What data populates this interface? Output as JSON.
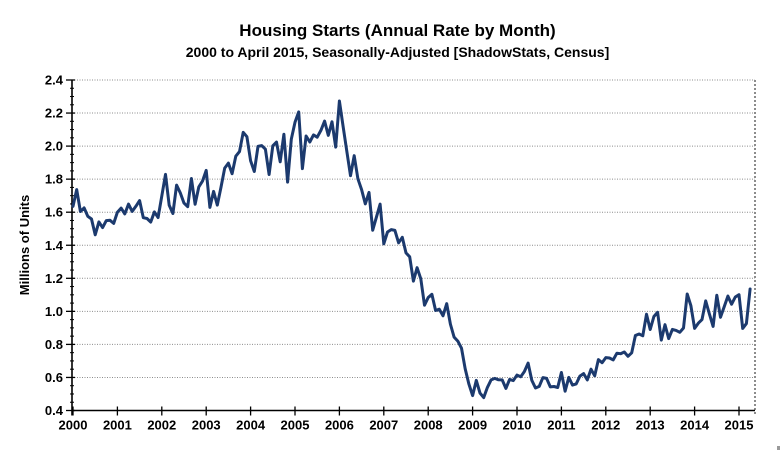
{
  "chart_data": {
    "type": "line",
    "title": "Housing Starts (Annual Rate by Month)",
    "subtitle": "2000 to April 2015, Seasonally-Adjusted [ShadowStats, Census]",
    "ylabel": "Millions  of  Units",
    "xlabel": "",
    "ylim": [
      0.4,
      2.4
    ],
    "ytick_step": 0.2,
    "yticks": [
      "0.4",
      "0.6",
      "0.8",
      "1.0",
      "1.2",
      "1.4",
      "1.6",
      "1.8",
      "2.0",
      "2.2",
      "2.4"
    ],
    "xticks": [
      "2000",
      "2001",
      "2002",
      "2003",
      "2004",
      "2005",
      "2006",
      "2007",
      "2008",
      "2009",
      "2010",
      "2011",
      "2012",
      "2013",
      "2014",
      "2015"
    ],
    "x_range": {
      "start": "2000-01",
      "end": "2015-04"
    },
    "grid": "horizontal-dotted",
    "legend": "none",
    "line_color": "#1C3A6E",
    "grid_color": "#8C8C8C",
    "axis_color": "#000000",
    "series": [
      {
        "name": "Housing Starts (millions of units, SAAR)",
        "values": [
          1.636,
          1.737,
          1.604,
          1.626,
          1.575,
          1.559,
          1.463,
          1.541,
          1.507,
          1.549,
          1.551,
          1.532,
          1.6,
          1.625,
          1.59,
          1.649,
          1.605,
          1.636,
          1.67,
          1.567,
          1.562,
          1.54,
          1.602,
          1.568,
          1.698,
          1.829,
          1.642,
          1.592,
          1.764,
          1.717,
          1.655,
          1.633,
          1.804,
          1.648,
          1.753,
          1.788,
          1.853,
          1.629,
          1.726,
          1.643,
          1.751,
          1.867,
          1.897,
          1.833,
          1.939,
          1.967,
          2.083,
          2.057,
          1.911,
          1.846,
          1.998,
          2.003,
          1.981,
          1.828,
          2.002,
          2.024,
          1.905,
          2.072,
          1.782,
          2.042,
          2.144,
          2.207,
          1.864,
          2.061,
          2.025,
          2.068,
          2.054,
          2.095,
          2.151,
          2.065,
          2.147,
          1.994,
          2.273,
          2.119,
          1.969,
          1.821,
          1.942,
          1.802,
          1.737,
          1.65,
          1.72,
          1.491,
          1.57,
          1.649,
          1.409,
          1.48,
          1.495,
          1.49,
          1.415,
          1.448,
          1.354,
          1.33,
          1.183,
          1.264,
          1.197,
          1.037,
          1.084,
          1.103,
          1.005,
          1.013,
          0.973,
          1.046,
          0.923,
          0.844,
          0.82,
          0.777,
          0.652,
          0.56,
          0.49,
          0.582,
          0.505,
          0.478,
          0.54,
          0.585,
          0.594,
          0.586,
          0.585,
          0.534,
          0.588,
          0.581,
          0.614,
          0.604,
          0.636,
          0.687,
          0.583,
          0.536,
          0.546,
          0.599,
          0.594,
          0.543,
          0.545,
          0.539,
          0.63,
          0.517,
          0.6,
          0.554,
          0.561,
          0.608,
          0.623,
          0.585,
          0.65,
          0.61,
          0.708,
          0.689,
          0.72,
          0.718,
          0.706,
          0.747,
          0.744,
          0.754,
          0.728,
          0.749,
          0.854,
          0.863,
          0.852,
          0.983,
          0.89,
          0.969,
          0.994,
          0.826,
          0.919,
          0.835,
          0.891,
          0.885,
          0.873,
          0.899,
          1.105,
          1.034,
          0.897,
          0.928,
          0.95,
          1.063,
          0.984,
          0.909,
          1.098,
          0.964,
          1.028,
          1.092,
          1.043,
          1.087,
          1.101,
          0.897,
          0.926,
          1.135
        ]
      }
    ]
  }
}
